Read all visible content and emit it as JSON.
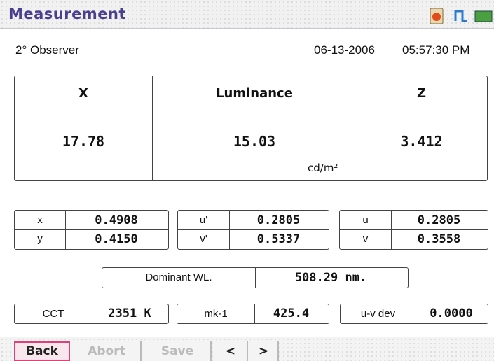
{
  "header": {
    "title": "Measurement"
  },
  "info": {
    "observer": "2° Observer",
    "date": "06-13-2006",
    "time": "05:57:30 PM"
  },
  "main_table": {
    "headers": [
      "X",
      "Luminance",
      "Z"
    ],
    "values": [
      "17.78",
      "15.03",
      "3.412"
    ],
    "unit": "cd/m²"
  },
  "chromaticity": [
    [
      {
        "label": "x",
        "value": "0.4908"
      },
      {
        "label": "y",
        "value": "0.4150"
      }
    ],
    [
      {
        "label": "u'",
        "value": "0.2805"
      },
      {
        "label": "v'",
        "value": "0.5337"
      }
    ],
    [
      {
        "label": "u",
        "value": "0.2805"
      },
      {
        "label": "v",
        "value": "0.3558"
      }
    ]
  ],
  "dominant": {
    "label": "Dominant WL.",
    "value": "508.29 nm."
  },
  "bottom_row": [
    {
      "label": "CCT",
      "value": "2351 K"
    },
    {
      "label": "mk-1",
      "value": "425.4"
    },
    {
      "label": "u-v dev",
      "value": "0.0000"
    }
  ],
  "buttons": [
    "Back",
    "Abort",
    "Save",
    "<",
    ">"
  ]
}
